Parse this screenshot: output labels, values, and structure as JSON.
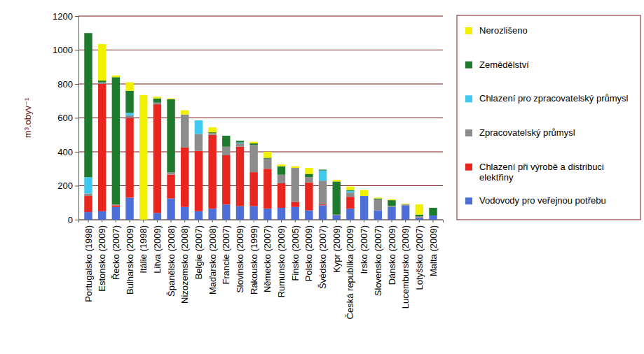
{
  "chart_data": {
    "type": "bar",
    "stacked": true,
    "grid": true,
    "legend": "right",
    "y_label": "m³.obyv⁻¹",
    "categories": [
      "Portugalsko (1998)",
      "Estonsko (2009)",
      "Řecko (2007)",
      "Bulharsko (2009)",
      "Itálie (1998)",
      "Litva (2009)",
      "Španělsko (2008)",
      "Nizozemsko (2008)",
      "Belgie (2007)",
      "Maďarsko (2008)",
      "Francie (2007)",
      "Slovinsko (2009)",
      "Rakousko (1999)",
      "Německo (2007)",
      "Rumunsko (2009)",
      "Finsko (2005)",
      "Polsko (2009)",
      "Švédsko (2007)",
      "Kypr (2009)",
      "Česká republika (2009)",
      "Irsko (2007)",
      "Slovensko (2007)",
      "Dánsko (2009)",
      "Lucembursko (2009)",
      "Lotyšsko (2007)",
      "Malta (2009)"
    ],
    "ylim": [
      0,
      1200
    ],
    "yticks": [
      0,
      200,
      400,
      600,
      800,
      1000,
      1200
    ],
    "series": [
      {
        "name": "Vodovody pro veřejnou potřebu",
        "color": "#4f6fd8",
        "values": [
          45,
          50,
          75,
          130,
          0,
          40,
          125,
          75,
          50,
          65,
          90,
          80,
          80,
          65,
          70,
          75,
          55,
          85,
          25,
          65,
          140,
          55,
          75,
          85,
          10,
          25
        ]
      },
      {
        "name": "Chlazení při výrobě a distribuci elektřiny",
        "color": "#e8251f",
        "values": [
          95,
          750,
          10,
          470,
          0,
          640,
          140,
          350,
          355,
          435,
          290,
          350,
          200,
          235,
          145,
          30,
          165,
          5,
          0,
          70,
          0,
          0,
          0,
          0,
          0,
          0
        ]
      },
      {
        "name": "Zpracovatelský průmysl",
        "color": "#8c8c8c",
        "values": [
          15,
          10,
          5,
          15,
          0,
          10,
          15,
          195,
          100,
          10,
          50,
          20,
          160,
          60,
          50,
          200,
          30,
          140,
          5,
          25,
          0,
          65,
          5,
          5,
          10,
          0
        ]
      },
      {
        "name": "Chlazení pro zpracovatelský průmysl",
        "color": "#3fc8f0",
        "values": [
          95,
          0,
          0,
          15,
          0,
          0,
          0,
          0,
          80,
          0,
          0,
          5,
          0,
          0,
          0,
          0,
          0,
          60,
          0,
          10,
          0,
          0,
          0,
          0,
          0,
          0
        ]
      },
      {
        "name": "Zemědělství",
        "color": "#1e7a2c",
        "values": [
          850,
          10,
          750,
          130,
          0,
          25,
          430,
          0,
          0,
          5,
          65,
          10,
          10,
          5,
          50,
          0,
          20,
          5,
          195,
          5,
          0,
          5,
          35,
          0,
          10,
          45
        ]
      },
      {
        "name": "Nerozlišeno",
        "color": "#f0f000",
        "values": [
          0,
          215,
          10,
          50,
          735,
          10,
          5,
          25,
          0,
          30,
          0,
          0,
          10,
          35,
          10,
          10,
          35,
          0,
          10,
          20,
          35,
          5,
          5,
          5,
          60,
          0
        ]
      }
    ]
  }
}
